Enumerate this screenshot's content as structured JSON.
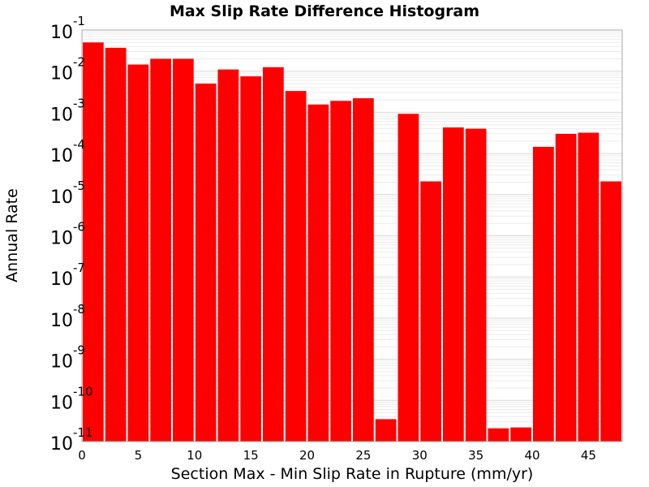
{
  "chart_data": {
    "type": "bar",
    "title": "Max Slip Rate Difference Histogram",
    "xlabel": "Section Max - Min Slip Rate in Rupture (mm/yr)",
    "ylabel": "Annual Rate",
    "y_scale": "log",
    "ylim": [
      1e-11,
      0.1
    ],
    "xlim": [
      0,
      48
    ],
    "bin_width": 2,
    "bar_color": "#ff0000",
    "grid": true,
    "x_ticks": [
      0,
      5,
      10,
      15,
      20,
      25,
      30,
      35,
      40,
      45
    ],
    "y_ticks": [
      {
        "base": "10",
        "exp": "-11",
        "value": 1e-11
      },
      {
        "base": "10",
        "exp": "-10",
        "value": 1e-10
      },
      {
        "base": "10",
        "exp": "-9",
        "value": 1e-09
      },
      {
        "base": "10",
        "exp": "-8",
        "value": 1e-08
      },
      {
        "base": "10",
        "exp": "-7",
        "value": 1e-07
      },
      {
        "base": "10",
        "exp": "-6",
        "value": 1e-06
      },
      {
        "base": "10",
        "exp": "-5",
        "value": 1e-05
      },
      {
        "base": "10",
        "exp": "-4",
        "value": 0.0001
      },
      {
        "base": "10",
        "exp": "-3",
        "value": 0.001
      },
      {
        "base": "10",
        "exp": "-2",
        "value": 0.01
      },
      {
        "base": "10",
        "exp": "-1",
        "value": 0.1
      }
    ],
    "bars": [
      {
        "x": 1,
        "value": 0.05
      },
      {
        "x": 3,
        "value": 0.037
      },
      {
        "x": 5,
        "value": 0.0145
      },
      {
        "x": 7,
        "value": 0.02
      },
      {
        "x": 9,
        "value": 0.02
      },
      {
        "x": 11,
        "value": 0.005
      },
      {
        "x": 13,
        "value": 0.011
      },
      {
        "x": 15,
        "value": 0.0075
      },
      {
        "x": 17,
        "value": 0.0125
      },
      {
        "x": 19,
        "value": 0.0033
      },
      {
        "x": 21,
        "value": 0.00155
      },
      {
        "x": 23,
        "value": 0.0019
      },
      {
        "x": 25,
        "value": 0.0022
      },
      {
        "x": 27,
        "value": 3.5e-11
      },
      {
        "x": 29,
        "value": 0.00092
      },
      {
        "x": 31,
        "value": 2.1e-05
      },
      {
        "x": 33,
        "value": 0.00043
      },
      {
        "x": 35,
        "value": 0.0004
      },
      {
        "x": 37,
        "value": 2.1e-11
      },
      {
        "x": 39,
        "value": 2.2e-11
      },
      {
        "x": 41,
        "value": 0.000145
      },
      {
        "x": 43,
        "value": 0.0003
      },
      {
        "x": 45,
        "value": 0.00032
      },
      {
        "x": 47,
        "value": 2.1e-05
      }
    ]
  }
}
